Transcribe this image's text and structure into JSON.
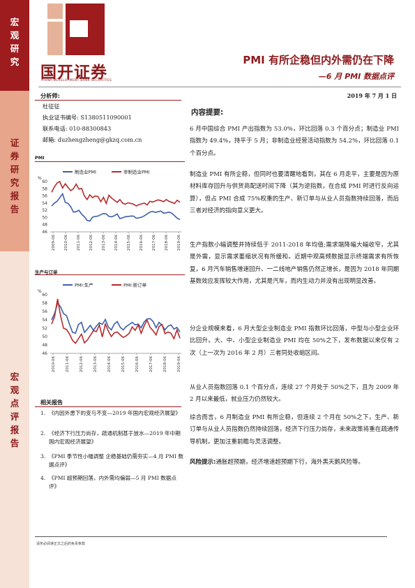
{
  "sidebar": {
    "top_label": [
      "宏",
      "观",
      "研",
      "究"
    ],
    "mid_label": [
      "证",
      "券",
      "研",
      "究",
      "报",
      "告"
    ],
    "bottom_label": [
      "宏",
      "观",
      "点",
      "评",
      "报",
      "告"
    ]
  },
  "brand": {
    "name": "国开证券",
    "name_en": "CHINA DEVELOPMENT BANK SECURITIES"
  },
  "header": {
    "title": "PMI 有所企稳但内外需仍在下降",
    "subtitle": "—6 月 PMI 数据点评",
    "date": "2019 年 7 月 1 日"
  },
  "analyst": {
    "heading": "分析师:",
    "name": "杜征征",
    "license": "执业证书编号: S1380511090001",
    "phone": "联系电话: 010-88300843",
    "email": "邮箱:  duzhengzheng@gkzq.com.cn"
  },
  "chart_data": [
    {
      "type": "line",
      "title": "PMI",
      "ylim": [
        46,
        60
      ],
      "yticks": [
        "60",
        "58",
        "56",
        "54",
        "52",
        "50",
        "48",
        "46"
      ],
      "y_unit": "%",
      "x_ticks": [
        "2009-06",
        "2010-06",
        "2011-06",
        "2012-06",
        "2013-06",
        "2014-06",
        "2015-06",
        "2016-06",
        "2017-06",
        "2018-06",
        "2019-06"
      ],
      "legend": "top",
      "series": [
        {
          "name": "制造业PMI",
          "color": "#3b5faa",
          "values": [
            53.2,
            54.0,
            54.5,
            55.5,
            56.6,
            54.2,
            53.9,
            53.0,
            51.5,
            51.6,
            52.0,
            50.9,
            50.2,
            49.2,
            49.0,
            50.1,
            50.3,
            50.4,
            50.8,
            51.1,
            51.0,
            50.3,
            50.2,
            50.5,
            51.0,
            49.7,
            49.9,
            50.2,
            50.3,
            50.4,
            50.4,
            49.8,
            49.9,
            50.1,
            50.5,
            51.0,
            51.5,
            51.7,
            51.4,
            51.6,
            51.8,
            51.2,
            51.3,
            51.5,
            51.2,
            50.5,
            49.8,
            49.4
          ]
        },
        {
          "name": "非制造业PMI",
          "color": "#b52b2b",
          "values": [
            57.0,
            58.5,
            59.6,
            60.0,
            58.2,
            59.4,
            58.4,
            57.5,
            58.0,
            59.3,
            57.9,
            58.1,
            56.0,
            55.0,
            56.3,
            55.5,
            56.0,
            55.8,
            54.4,
            55.6,
            53.9,
            56.2,
            55.4,
            54.8,
            54.2,
            55.0,
            54.0,
            53.7,
            54.1,
            53.9,
            53.7,
            53.2,
            53.6,
            53.8,
            54.0,
            53.5,
            54.5,
            54.3,
            54.6,
            54.9,
            54.7,
            54.4,
            55.0,
            54.5,
            54.2,
            53.9,
            54.8,
            54.2
          ]
        }
      ]
    },
    {
      "type": "line",
      "title": "生产与订单",
      "ylim": [
        46,
        60
      ],
      "yticks": [
        "60",
        "58",
        "56",
        "54",
        "52",
        "50",
        "48",
        "46"
      ],
      "y_unit": "%",
      "x_ticks": [
        "2010-06",
        "2011-06",
        "2012-06",
        "2013-06",
        "2014-06",
        "2015-06",
        "2016-06",
        "2017-06",
        "2018-06",
        "2019-06"
      ],
      "legend": "top",
      "series": [
        {
          "name": "PMI:生产",
          "color": "#3b5faa",
          "values": [
            54.0,
            55.5,
            58.0,
            57.1,
            55.5,
            55.0,
            52.9,
            51.0,
            50.8,
            52.9,
            53.4,
            51.0,
            51.8,
            52.7,
            51.5,
            52.5,
            53.3,
            52.9,
            54.1,
            52.3,
            51.6,
            53.0,
            53.6,
            52.2,
            51.6,
            52.4,
            52.9,
            53.4,
            52.8,
            53.0,
            52.1,
            53.5,
            54.2,
            54.3,
            53.6,
            52.1,
            53.4,
            52.7,
            51.6,
            52.5,
            52.8,
            51.8,
            52.2,
            51.1
          ]
        },
        {
          "name": "PMI:新订单",
          "color": "#b52b2b",
          "values": [
            53.0,
            54.8,
            59.0,
            55.0,
            52.0,
            51.7,
            50.6,
            49.1,
            48.4,
            49.5,
            50.6,
            48.5,
            49.2,
            50.3,
            51.4,
            51.2,
            52.8,
            49.9,
            53.0,
            51.3,
            50.0,
            50.9,
            51.1,
            50.4,
            49.8,
            50.2,
            50.8,
            52.3,
            51.5,
            52.8,
            50.8,
            52.6,
            53.9,
            52.2,
            51.4,
            50.4,
            52.4,
            52.9,
            50.7,
            51.1,
            50.8,
            49.5,
            51.6,
            49.6
          ]
        }
      ]
    }
  ],
  "related": {
    "heading": "相关报告",
    "items": [
      {
        "num": "1.",
        "text": "《内因外患下的变与不变—2019 年国内宏观经济展望》"
      },
      {
        "num": "2.",
        "text": "《经济下行压力尚存，疏通机制甚于放水—2019 年中期国内宏观经济展望》"
      },
      {
        "num": "3.",
        "text": "《PMI 季节性小幅调整 企稳基础仍需夯实—4 月 PMI 数据点评》"
      },
      {
        "num": "4.",
        "text": "《PMI 超预期回落，内外需均偏弱—5 月 PMI 数据点评》"
      }
    ]
  },
  "summary": {
    "heading": "内容提要:",
    "paragraphs": [
      "6 月中国综合 PMI 产出指数为 53.0%，环比回落 0.3 个百分点；制造业 PMI 指数为 49.4%，持平于 5 月；非制造业经营活动指数为 54.2%，环比回落 0.1 个百分点。",
      "制造业 PMI 有所企稳，但同时也要清醒地看到，其在 6 月走平，主要是因为原材料库存回升与供货商配送时间下降（其为逆指数，在合成 PMI 时进行反向运算），但占 PMI 合成 75%权重的生产、新订单与从业人员指数持续回落，而后三者对经济的指向意义更大。",
      "生产指数小幅调整并持续低于 2011-2018 年均值;需求端降幅大幅收窄，尤其是外需，显示需求萎缩状况有所缓和。近期中观高频数据显示终端需求有所恢复，6 月汽车销售增速回升、一二线地产销售仍然正增长，是因为 2018 年同期基数效应发挥较大作用，尤其是汽车，而内生动力并没有出现明显改善。",
      "分企业规模来看，6 月大型企业制造业 PMI 指数环比回落，中型与小型企业环比回升。大、中、小型企业制造业 PMI 均在 50%之下，发布数据以来仅有 2 次（上一次为 2016 年 2 月）三者同处收缩区间。",
      "从业人员指数回落 0.1 个百分点，连续 27 个月处于 50%之下，且为 2009 年 2 月以来最低，就业压力仍然较大。",
      "综合而言，6 月制造业 PMI 有所企稳，但连续 2 个月在 50%之下，生产、新订单与从业人员指数仍然持续回落，经济下行压力尚存，未来政策将重在疏通传导机制，更加注重前瞻与灵活调整。"
    ],
    "risk_label": "风险提示:",
    "risk_text": "通胀超预期，经济增速超预期下行，海外黑天鹅风险等。"
  },
  "footer": {
    "disclaimer": "请务必阅读正文之后的免责条款"
  },
  "colors": {
    "brand_red": "#9e1b1e",
    "band_mid": "#e7a58b",
    "band_light": "#f6e2d6"
  }
}
